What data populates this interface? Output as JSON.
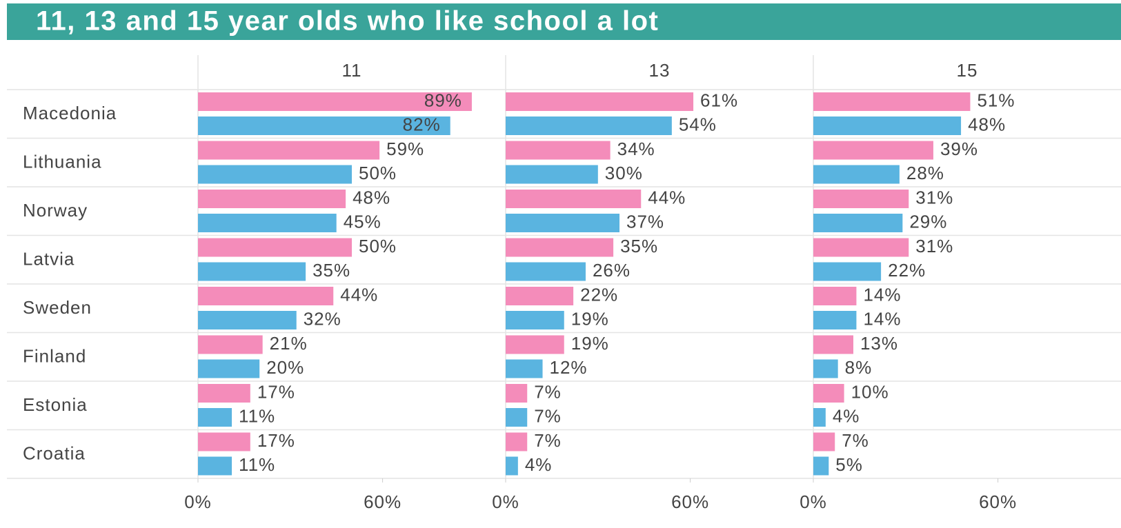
{
  "chart_data": {
    "type": "bar",
    "title": "11, 13 and 15 year olds who like school a lot",
    "categories": [
      "Macedonia",
      "Lithuania",
      "Norway",
      "Latvia",
      "Sweden",
      "Finland",
      "Estonia",
      "Croatia"
    ],
    "xlim": [
      0,
      100
    ],
    "xticks": [
      {
        "value": 0,
        "label": "0%"
      },
      {
        "value": 60,
        "label": "60%"
      }
    ],
    "panels": [
      {
        "title": "11",
        "series": [
          {
            "color": "#f48cba",
            "values": [
              89,
              59,
              48,
              50,
              44,
              21,
              17,
              17
            ],
            "value_labels": [
              "89%",
              "59%",
              "48%",
              "50%",
              "44%",
              "21%",
              "17%",
              "17%"
            ]
          },
          {
            "color": "#5ab4e0",
            "values": [
              82,
              50,
              45,
              35,
              32,
              20,
              11,
              11
            ],
            "value_labels": [
              "82%",
              "50%",
              "45%",
              "35%",
              "32%",
              "20%",
              "11%",
              "11%"
            ]
          }
        ]
      },
      {
        "title": "13",
        "series": [
          {
            "color": "#f48cba",
            "values": [
              61,
              34,
              44,
              35,
              22,
              19,
              7,
              7
            ],
            "value_labels": [
              "61%",
              "34%",
              "44%",
              "35%",
              "22%",
              "19%",
              "7%",
              "7%"
            ]
          },
          {
            "color": "#5ab4e0",
            "values": [
              54,
              30,
              37,
              26,
              19,
              12,
              7,
              4
            ],
            "value_labels": [
              "54%",
              "30%",
              "37%",
              "26%",
              "19%",
              "12%",
              "7%",
              "4%"
            ]
          }
        ]
      },
      {
        "title": "15",
        "series": [
          {
            "color": "#f48cba",
            "values": [
              51,
              39,
              31,
              31,
              14,
              13,
              10,
              7
            ],
            "value_labels": [
              "51%",
              "39%",
              "31%",
              "31%",
              "14%",
              "13%",
              "10%",
              "7%"
            ]
          },
          {
            "color": "#5ab4e0",
            "values": [
              48,
              28,
              29,
              22,
              14,
              8,
              4,
              5
            ],
            "value_labels": [
              "48%",
              "28%",
              "29%",
              "22%",
              "14%",
              "8%",
              "4%",
              "5%"
            ]
          }
        ]
      }
    ]
  }
}
